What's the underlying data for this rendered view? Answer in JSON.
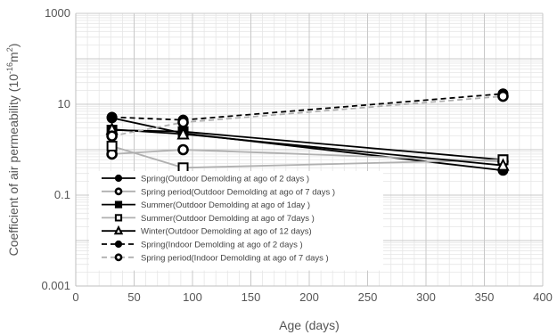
{
  "chart_data": {
    "type": "line",
    "title": "",
    "xlabel": "Age (days)",
    "ylabel_main": "Coefficient of air permeability (10",
    "ylabel_exp": "-16",
    "ylabel_unit": "m",
    "ylabel_unit_exp": "2",
    "ylabel_close": ")",
    "y_scale": "log",
    "xlim": [
      0,
      400
    ],
    "ylim": [
      0.001,
      1000
    ],
    "x_ticks": [
      "0",
      "50",
      "100",
      "150",
      "200",
      "250",
      "300",
      "350",
      "400"
    ],
    "y_ticks": [
      "0.001",
      "0.1",
      "10",
      "1000"
    ],
    "grid": true,
    "legend_position": "bottom-left",
    "series": [
      {
        "name": "Spring(Outdoor Demolding at ago of 2 days )",
        "x": [
          31,
          92,
          366
        ],
        "y": [
          5.0,
          2.3,
          0.35
        ],
        "color": "#000000",
        "dash": "solid",
        "marker": "circle-filled"
      },
      {
        "name": "Spring period(Outdoor Demolding at ago of 7 days )",
        "x": [
          31,
          92,
          366
        ],
        "y": [
          0.8,
          1.0,
          0.55
        ],
        "color": "#b0b0b0",
        "dash": "solid",
        "marker": "circle-open"
      },
      {
        "name": "Summer(Outdoor Demolding at ago of 1day )",
        "x": [
          31,
          92,
          366
        ],
        "y": [
          2.7,
          2.5,
          0.6
        ],
        "color": "#000000",
        "dash": "solid",
        "marker": "square-filled"
      },
      {
        "name": "Summer(Outdoor Demolding at ago of 7days )",
        "x": [
          31,
          92,
          366
        ],
        "y": [
          1.2,
          0.4,
          0.6
        ],
        "color": "#b0b0b0",
        "dash": "solid",
        "marker": "square-open"
      },
      {
        "name": "Winter(Outdoor Demolding at ago of 12 days)",
        "x": [
          31,
          92,
          366
        ],
        "y": [
          2.8,
          2.2,
          0.45
        ],
        "color": "#000000",
        "dash": "solid",
        "marker": "triangle-open"
      },
      {
        "name": "Spring(Indoor Demolding at ago of 2 days )",
        "x": [
          31,
          92,
          366
        ],
        "y": [
          5.2,
          4.5,
          17.0
        ],
        "color": "#000000",
        "dash": "dashed",
        "marker": "circle-filled"
      },
      {
        "name": "Spring period(Indoor Demolding at ago of 7 days )",
        "x": [
          31,
          92,
          366
        ],
        "y": [
          2.0,
          4.0,
          15.0
        ],
        "color": "#b0b0b0",
        "dash": "dashed",
        "marker": "circle-open"
      }
    ]
  }
}
